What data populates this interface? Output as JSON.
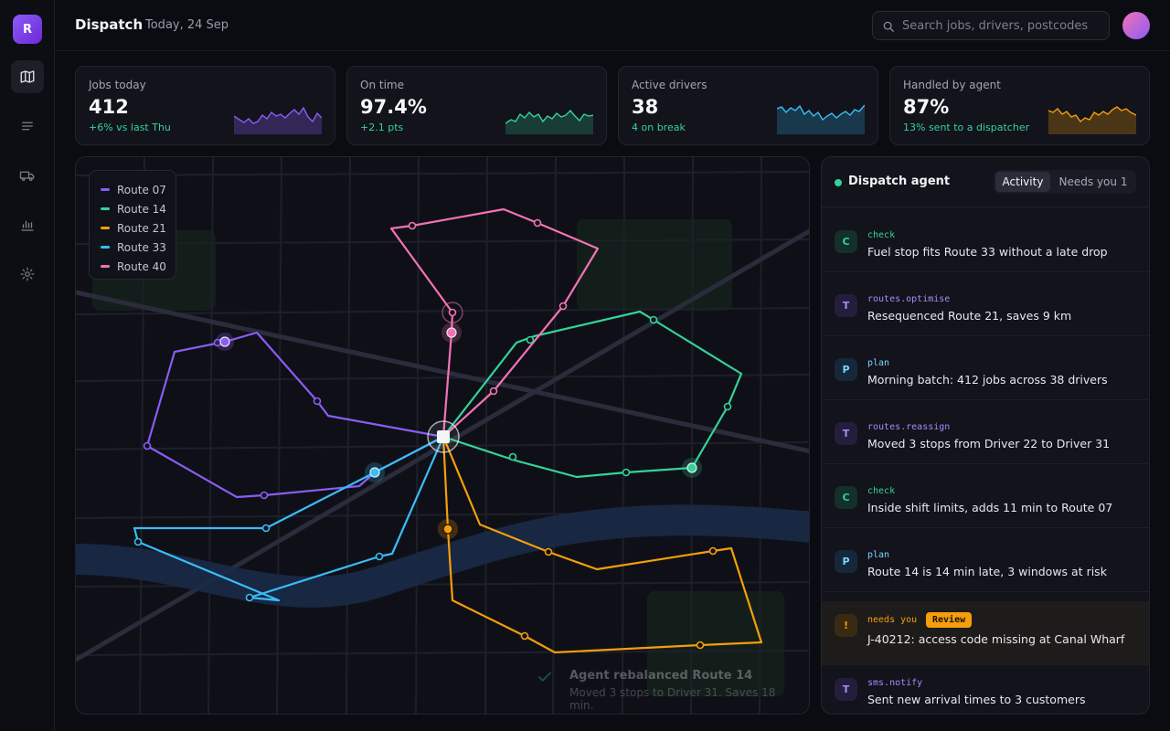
{
  "app": {
    "logo_letter": "R",
    "title": "Dispatch",
    "date": "Today, 24 Sep"
  },
  "sidebar": {
    "items": [
      {
        "icon": "map-icon",
        "active": true
      },
      {
        "icon": "list-icon",
        "active": false
      },
      {
        "icon": "truck-icon",
        "active": false
      },
      {
        "icon": "bar-chart-icon",
        "active": false
      },
      {
        "icon": "gear-icon",
        "active": false
      }
    ]
  },
  "search": {
    "placeholder": "Search jobs, drivers, postcodes",
    "value": ""
  },
  "kpis": [
    {
      "label": "Jobs today",
      "value": "412",
      "sub": "+6% vs last Thu",
      "color": "#8b5cf6"
    },
    {
      "label": "On time",
      "value": "97.4%",
      "sub": "+2.1 pts",
      "color": "#34d399"
    },
    {
      "label": "Active drivers",
      "value": "38",
      "sub": "4 on break",
      "color": "#38bdf8"
    },
    {
      "label": "Handled by agent",
      "value": "87%",
      "sub": "13% sent to a dispatcher",
      "color": "#f59e0b"
    }
  ],
  "map": {
    "legend": [
      {
        "label": "Route 07",
        "color": "#8b5cf6"
      },
      {
        "label": "Route 14",
        "color": "#34d399"
      },
      {
        "label": "Route 21",
        "color": "#f59e0b"
      },
      {
        "label": "Route 33",
        "color": "#38bdf8"
      },
      {
        "label": "Route 40",
        "color": "#f472b6"
      }
    ],
    "toast": {
      "title": "Agent rebalanced Route 14",
      "subtitle": "Moved 3 stops to Driver 31. Saves 18 min."
    }
  },
  "agent": {
    "title": "Dispatch agent",
    "tabs": [
      {
        "label": "Activity",
        "active": true
      },
      {
        "label": "Needs you 1",
        "active": false
      }
    ],
    "feed": [
      {
        "badge": "C",
        "kind": "c",
        "tool": "check",
        "message": "Fuel stop fits Route 33 without a late drop"
      },
      {
        "badge": "T",
        "kind": "t",
        "tool": "routes.optimise",
        "message": "Resequenced Route 21, saves 9 km"
      },
      {
        "badge": "P",
        "kind": "p",
        "tool": "plan",
        "message": "Morning batch: 412 jobs across 38 drivers"
      },
      {
        "badge": "T",
        "kind": "t",
        "tool": "routes.reassign",
        "message": "Moved 3 stops from Driver 22 to Driver 31"
      },
      {
        "badge": "C",
        "kind": "c",
        "tool": "check",
        "message": "Inside shift limits, adds 11 min to Route 07"
      },
      {
        "badge": "P",
        "kind": "p",
        "tool": "plan",
        "message": "Route 14 is 14 min late, 3 windows at risk"
      },
      {
        "badge": "!",
        "kind": "w",
        "tool": "needs you",
        "tag": "Review",
        "message": "J-40212: access code missing at Canal Wharf"
      },
      {
        "badge": "T",
        "kind": "t",
        "tool": "sms.notify",
        "message": "Sent new arrival times to 3 customers"
      }
    ]
  }
}
